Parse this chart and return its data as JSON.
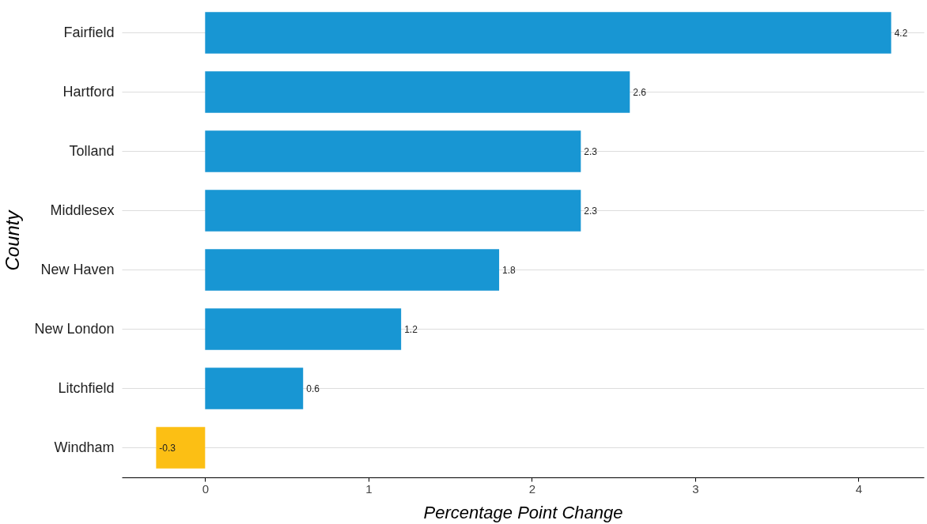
{
  "chart_data": {
    "type": "bar",
    "orientation": "horizontal",
    "xlabel": "Percentage Point Change",
    "ylabel": "County",
    "categories": [
      "Fairfield",
      "Hartford",
      "Tolland",
      "Middlesex",
      "New Haven",
      "New London",
      "Litchfield",
      "Windham"
    ],
    "values": [
      4.2,
      2.6,
      2.3,
      2.3,
      1.8,
      1.2,
      0.6,
      -0.3
    ],
    "colors": [
      "#1896d3",
      "#1896d3",
      "#1896d3",
      "#1896d3",
      "#1896d3",
      "#1896d3",
      "#1896d3",
      "#fcbf14"
    ],
    "xlim": [
      -0.51,
      4.4
    ],
    "xticks": [
      0,
      1,
      2,
      3,
      4
    ],
    "grid": "y",
    "data_labels": true
  }
}
